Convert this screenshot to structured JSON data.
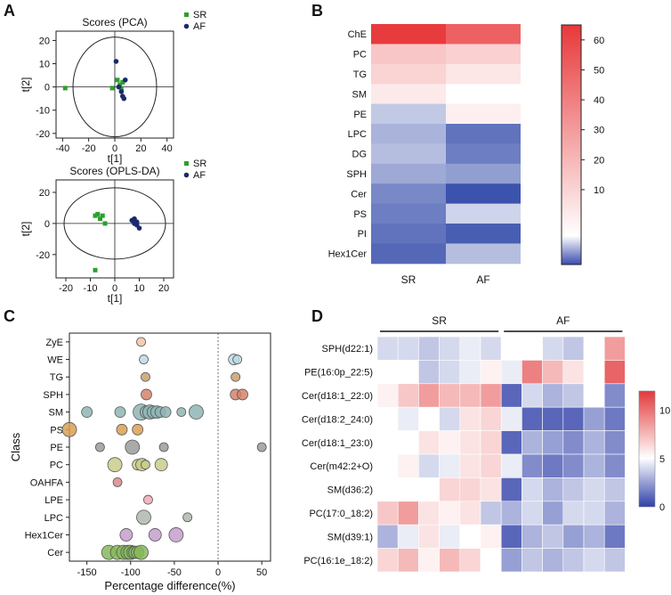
{
  "chart_data": [
    {
      "panel": "A",
      "type": "scatter",
      "title": "Scores (PCA)",
      "xlabel": "t[1]",
      "ylabel": "t[2]",
      "xlim": [
        -45,
        45
      ],
      "ylim": [
        -22,
        24
      ],
      "xticks": [
        -40,
        -20,
        0,
        20,
        40
      ],
      "yticks": [
        -20,
        -10,
        0,
        10,
        20
      ],
      "legend": [
        {
          "name": "SR",
          "color": "#2ca02c",
          "marker": "square"
        },
        {
          "name": "AF",
          "color": "#1a2a6c",
          "marker": "circle"
        }
      ],
      "series": [
        {
          "name": "SR",
          "points": [
            [
              -38,
              -0.5
            ],
            [
              -2,
              -0.5
            ],
            [
              2,
              3
            ],
            [
              4,
              1
            ],
            [
              5,
              -1
            ],
            [
              6,
              2
            ]
          ]
        },
        {
          "name": "AF",
          "points": [
            [
              1,
              11
            ],
            [
              3,
              0
            ],
            [
              5,
              -2
            ],
            [
              6,
              -4
            ],
            [
              7,
              -5
            ],
            [
              8,
              3
            ]
          ]
        }
      ]
    },
    {
      "panel": "A",
      "type": "scatter",
      "title": "Scores (OPLS-DA)",
      "xlabel": "t[1]",
      "ylabel": "t[2]",
      "xlim": [
        -24,
        24
      ],
      "ylim": [
        -35,
        28
      ],
      "xticks": [
        -20,
        -10,
        0,
        10,
        20
      ],
      "yticks": [
        -20,
        0,
        20
      ],
      "legend": [
        {
          "name": "SR",
          "color": "#2ca02c",
          "marker": "square"
        },
        {
          "name": "AF",
          "color": "#1a2a6c",
          "marker": "circle"
        }
      ],
      "series": [
        {
          "name": "SR",
          "points": [
            [
              -8,
              5
            ],
            [
              -7,
              6
            ],
            [
              -6,
              3
            ],
            [
              -5,
              5
            ],
            [
              -4,
              0
            ],
            [
              -8,
              -30
            ]
          ]
        },
        {
          "name": "AF",
          "points": [
            [
              7,
              2
            ],
            [
              8,
              0
            ],
            [
              8,
              3
            ],
            [
              9,
              -1
            ],
            [
              10,
              -3
            ],
            [
              9,
              1
            ]
          ]
        }
      ]
    },
    {
      "panel": "B",
      "type": "heatmap",
      "rows": [
        "ChE",
        "PC",
        "TG",
        "SM",
        "PE",
        "LPC",
        "DG",
        "SPH",
        "Cer",
        "PS",
        "PI",
        "Hex1Cer"
      ],
      "columns": [
        "SR",
        "AF"
      ],
      "values": [
        [
          64,
          52
        ],
        [
          20,
          17
        ],
        [
          16,
          10
        ],
        [
          9,
          2
        ],
        [
          -3,
          7
        ],
        [
          -5,
          -11
        ],
        [
          -4,
          -10
        ],
        [
          -6,
          -7
        ],
        [
          -9,
          -14
        ],
        [
          -10,
          -2
        ],
        [
          -11,
          -13
        ],
        [
          -12,
          -4
        ]
      ],
      "colorbar_ticks": [
        10,
        20,
        30,
        40,
        50,
        60
      ],
      "colorbar_range": [
        -15,
        65
      ]
    },
    {
      "panel": "C",
      "type": "scatter",
      "xlabel": "Percentage difference(%)",
      "ylabel": "Class",
      "xlim": [
        -170,
        60
      ],
      "xticks": [
        -150,
        -100,
        -50,
        0,
        50
      ],
      "categories": [
        "ZyE",
        "WE",
        "TG",
        "SPH",
        "SM",
        "PS",
        "PE",
        "PC",
        "OAHFA",
        "LPE",
        "LPC",
        "Hex1Cer",
        "Cer"
      ],
      "category_colors": {
        "ZyE": "#f2c4a4",
        "WE": "#bcd9e8",
        "TG": "#c8a06e",
        "SPH": "#d4826a",
        "SM": "#8fb5b5",
        "PS": "#d9a054",
        "PE": "#9b9b9b",
        "PC": "#c9cd8a",
        "OAHFA": "#d98a8a",
        "LPE": "#f0a8b8",
        "LPC": "#aeb8ae",
        "Hex1Cer": "#c59ecc",
        "Cer": "#86b85c"
      },
      "points": [
        {
          "class": "ZyE",
          "x": -88,
          "s": 5
        },
        {
          "class": "WE",
          "x": -85,
          "s": 5
        },
        {
          "class": "WE",
          "x": 18,
          "s": 6
        },
        {
          "class": "WE",
          "x": 22,
          "s": 5
        },
        {
          "class": "TG",
          "x": -83,
          "s": 5
        },
        {
          "class": "TG",
          "x": 20,
          "s": 5
        },
        {
          "class": "SPH",
          "x": -82,
          "s": 6
        },
        {
          "class": "SPH",
          "x": 20,
          "s": 6
        },
        {
          "class": "SPH",
          "x": 28,
          "s": 6
        },
        {
          "class": "SM",
          "x": -150,
          "s": 6
        },
        {
          "class": "SM",
          "x": -112,
          "s": 6
        },
        {
          "class": "SM",
          "x": -88,
          "s": 9
        },
        {
          "class": "SM",
          "x": -82,
          "s": 7
        },
        {
          "class": "SM",
          "x": -78,
          "s": 8
        },
        {
          "class": "SM",
          "x": -74,
          "s": 7
        },
        {
          "class": "SM",
          "x": -70,
          "s": 7
        },
        {
          "class": "SM",
          "x": -66,
          "s": 6
        },
        {
          "class": "SM",
          "x": -60,
          "s": 6
        },
        {
          "class": "SM",
          "x": -42,
          "s": 5
        },
        {
          "class": "SM",
          "x": -25,
          "s": 8
        },
        {
          "class": "PS",
          "x": -170,
          "s": 8
        },
        {
          "class": "PS",
          "x": -110,
          "s": 6
        },
        {
          "class": "PS",
          "x": -92,
          "s": 6
        },
        {
          "class": "PE",
          "x": -135,
          "s": 5
        },
        {
          "class": "PE",
          "x": -98,
          "s": 8
        },
        {
          "class": "PE",
          "x": -62,
          "s": 5
        },
        {
          "class": "PE",
          "x": 50,
          "s": 5
        },
        {
          "class": "PC",
          "x": -118,
          "s": 8
        },
        {
          "class": "PC",
          "x": -92,
          "s": 6
        },
        {
          "class": "PC",
          "x": -87,
          "s": 7
        },
        {
          "class": "PC",
          "x": -83,
          "s": 5
        },
        {
          "class": "PC",
          "x": -65,
          "s": 7
        },
        {
          "class": "OAHFA",
          "x": -115,
          "s": 5
        },
        {
          "class": "LPE",
          "x": -80,
          "s": 5
        },
        {
          "class": "LPC",
          "x": -85,
          "s": 8
        },
        {
          "class": "LPC",
          "x": -35,
          "s": 5
        },
        {
          "class": "Hex1Cer",
          "x": -105,
          "s": 7
        },
        {
          "class": "Hex1Cer",
          "x": -72,
          "s": 7
        },
        {
          "class": "Hex1Cer",
          "x": -48,
          "s": 8
        },
        {
          "class": "Cer",
          "x": -125,
          "s": 8
        },
        {
          "class": "Cer",
          "x": -115,
          "s": 8
        },
        {
          "class": "Cer",
          "x": -108,
          "s": 8
        },
        {
          "class": "Cer",
          "x": -103,
          "s": 8
        },
        {
          "class": "Cer",
          "x": -100,
          "s": 8
        },
        {
          "class": "Cer",
          "x": -97,
          "s": 7
        },
        {
          "class": "Cer",
          "x": -95,
          "s": 7
        },
        {
          "class": "Cer",
          "x": -92,
          "s": 7
        },
        {
          "class": "Cer",
          "x": -88,
          "s": 8
        }
      ]
    },
    {
      "panel": "D",
      "type": "heatmap",
      "rows": [
        "SPH(d22:1)",
        "PE(16:0p_22:5)",
        "Cer(d18:1_22:0)",
        "Cer(d18:2_24:0)",
        "Cer(d18:1_23:0)",
        "Cer(m42:2+O)",
        "SM(d36:2)",
        "PC(17:0_18:2)",
        "SM(d39:1)",
        "PC(16:1e_18:2)"
      ],
      "groups": [
        {
          "name": "SR",
          "columns": 6
        },
        {
          "name": "AF",
          "columns": 6
        }
      ],
      "values": [
        [
          4,
          4,
          3.5,
          4,
          4.5,
          4,
          5,
          5,
          4,
          3.5,
          5,
          8.5
        ],
        [
          5,
          5,
          3.5,
          4,
          4.5,
          5.5,
          4.5,
          9.5,
          7.5,
          6,
          5,
          10.5
        ],
        [
          5.5,
          7,
          8.5,
          7.5,
          7.5,
          8.5,
          1,
          4,
          3,
          3.5,
          5,
          2
        ],
        [
          5,
          4.5,
          5,
          4,
          6,
          6.5,
          4.5,
          1,
          1,
          1,
          2.5,
          1.5
        ],
        [
          5,
          5,
          6,
          5.5,
          6,
          6.5,
          1,
          3,
          2.5,
          2,
          3,
          2
        ],
        [
          5,
          5.5,
          4,
          4.5,
          6,
          6.5,
          4.5,
          2,
          1.5,
          2,
          3,
          2
        ],
        [
          5,
          5,
          5,
          6.5,
          6.5,
          6,
          1,
          4,
          3,
          3.5,
          4,
          3.5
        ],
        [
          7,
          8.5,
          6,
          5.5,
          6,
          3.5,
          3,
          4,
          2.5,
          4,
          4,
          3
        ],
        [
          3,
          4.5,
          6,
          4.5,
          5,
          5.5,
          1,
          3,
          3.5,
          2.5,
          3,
          1.5
        ],
        [
          6.5,
          7.5,
          5.5,
          7.5,
          6.5,
          5,
          2.5,
          3.5,
          3,
          3.5,
          4,
          3.5
        ]
      ],
      "colorbar_ticks": [
        0,
        5,
        10
      ],
      "colorbar_range": [
        0,
        12
      ]
    }
  ]
}
